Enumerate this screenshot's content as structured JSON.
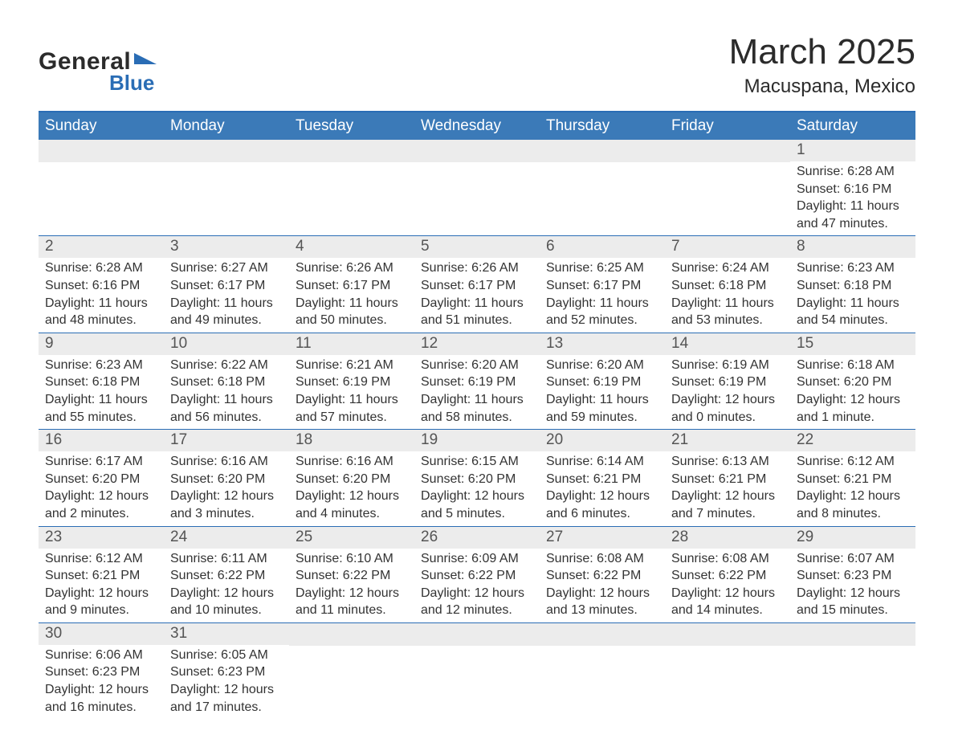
{
  "brand": {
    "general": "General",
    "blue": "Blue"
  },
  "title": "March 2025",
  "location": "Macuspana, Mexico",
  "colors": {
    "header_bg": "#3b7ab8",
    "header_text": "#ffffff",
    "rule": "#2a6db5",
    "daynum_bg": "#ececec",
    "text": "#333333",
    "page_bg": "#ffffff"
  },
  "typography": {
    "title_fontsize": 44,
    "location_fontsize": 24,
    "dow_fontsize": 19,
    "daynum_fontsize": 19,
    "cell_fontsize": 16
  },
  "days_of_week": [
    "Sunday",
    "Monday",
    "Tuesday",
    "Wednesday",
    "Thursday",
    "Friday",
    "Saturday"
  ],
  "labels": {
    "sunrise": "Sunrise:",
    "sunset": "Sunset:",
    "daylight": "Daylight:"
  },
  "weeks": [
    [
      null,
      null,
      null,
      null,
      null,
      null,
      {
        "n": "1",
        "sr": "6:28 AM",
        "ss": "6:16 PM",
        "dl": "11 hours and 47 minutes."
      }
    ],
    [
      {
        "n": "2",
        "sr": "6:28 AM",
        "ss": "6:16 PM",
        "dl": "11 hours and 48 minutes."
      },
      {
        "n": "3",
        "sr": "6:27 AM",
        "ss": "6:17 PM",
        "dl": "11 hours and 49 minutes."
      },
      {
        "n": "4",
        "sr": "6:26 AM",
        "ss": "6:17 PM",
        "dl": "11 hours and 50 minutes."
      },
      {
        "n": "5",
        "sr": "6:26 AM",
        "ss": "6:17 PM",
        "dl": "11 hours and 51 minutes."
      },
      {
        "n": "6",
        "sr": "6:25 AM",
        "ss": "6:17 PM",
        "dl": "11 hours and 52 minutes."
      },
      {
        "n": "7",
        "sr": "6:24 AM",
        "ss": "6:18 PM",
        "dl": "11 hours and 53 minutes."
      },
      {
        "n": "8",
        "sr": "6:23 AM",
        "ss": "6:18 PM",
        "dl": "11 hours and 54 minutes."
      }
    ],
    [
      {
        "n": "9",
        "sr": "6:23 AM",
        "ss": "6:18 PM",
        "dl": "11 hours and 55 minutes."
      },
      {
        "n": "10",
        "sr": "6:22 AM",
        "ss": "6:18 PM",
        "dl": "11 hours and 56 minutes."
      },
      {
        "n": "11",
        "sr": "6:21 AM",
        "ss": "6:19 PM",
        "dl": "11 hours and 57 minutes."
      },
      {
        "n": "12",
        "sr": "6:20 AM",
        "ss": "6:19 PM",
        "dl": "11 hours and 58 minutes."
      },
      {
        "n": "13",
        "sr": "6:20 AM",
        "ss": "6:19 PM",
        "dl": "11 hours and 59 minutes."
      },
      {
        "n": "14",
        "sr": "6:19 AM",
        "ss": "6:19 PM",
        "dl": "12 hours and 0 minutes."
      },
      {
        "n": "15",
        "sr": "6:18 AM",
        "ss": "6:20 PM",
        "dl": "12 hours and 1 minute."
      }
    ],
    [
      {
        "n": "16",
        "sr": "6:17 AM",
        "ss": "6:20 PM",
        "dl": "12 hours and 2 minutes."
      },
      {
        "n": "17",
        "sr": "6:16 AM",
        "ss": "6:20 PM",
        "dl": "12 hours and 3 minutes."
      },
      {
        "n": "18",
        "sr": "6:16 AM",
        "ss": "6:20 PM",
        "dl": "12 hours and 4 minutes."
      },
      {
        "n": "19",
        "sr": "6:15 AM",
        "ss": "6:20 PM",
        "dl": "12 hours and 5 minutes."
      },
      {
        "n": "20",
        "sr": "6:14 AM",
        "ss": "6:21 PM",
        "dl": "12 hours and 6 minutes."
      },
      {
        "n": "21",
        "sr": "6:13 AM",
        "ss": "6:21 PM",
        "dl": "12 hours and 7 minutes."
      },
      {
        "n": "22",
        "sr": "6:12 AM",
        "ss": "6:21 PM",
        "dl": "12 hours and 8 minutes."
      }
    ],
    [
      {
        "n": "23",
        "sr": "6:12 AM",
        "ss": "6:21 PM",
        "dl": "12 hours and 9 minutes."
      },
      {
        "n": "24",
        "sr": "6:11 AM",
        "ss": "6:22 PM",
        "dl": "12 hours and 10 minutes."
      },
      {
        "n": "25",
        "sr": "6:10 AM",
        "ss": "6:22 PM",
        "dl": "12 hours and 11 minutes."
      },
      {
        "n": "26",
        "sr": "6:09 AM",
        "ss": "6:22 PM",
        "dl": "12 hours and 12 minutes."
      },
      {
        "n": "27",
        "sr": "6:08 AM",
        "ss": "6:22 PM",
        "dl": "12 hours and 13 minutes."
      },
      {
        "n": "28",
        "sr": "6:08 AM",
        "ss": "6:22 PM",
        "dl": "12 hours and 14 minutes."
      },
      {
        "n": "29",
        "sr": "6:07 AM",
        "ss": "6:23 PM",
        "dl": "12 hours and 15 minutes."
      }
    ],
    [
      {
        "n": "30",
        "sr": "6:06 AM",
        "ss": "6:23 PM",
        "dl": "12 hours and 16 minutes."
      },
      {
        "n": "31",
        "sr": "6:05 AM",
        "ss": "6:23 PM",
        "dl": "12 hours and 17 minutes."
      },
      null,
      null,
      null,
      null,
      null
    ]
  ]
}
